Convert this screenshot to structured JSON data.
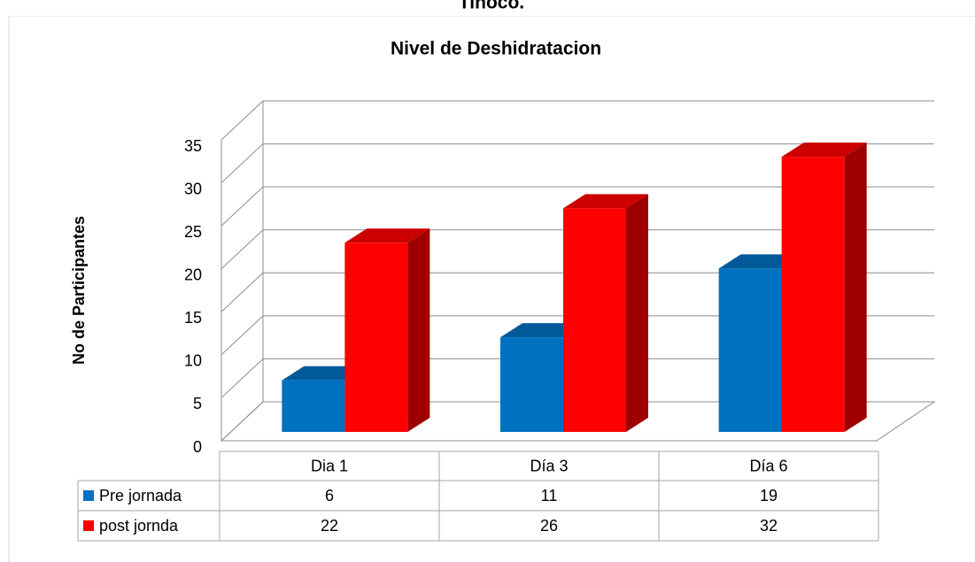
{
  "heading": "Tinoco.",
  "chart_data": {
    "type": "bar3d",
    "title": "Nivel de Deshidratacion",
    "y_label": "No de Participantes",
    "categories": [
      "Dia 1",
      "Día 3",
      "Día 6"
    ],
    "series": [
      {
        "name": "Pre jornada",
        "color": "#0070c0",
        "values": [
          6,
          11,
          19
        ]
      },
      {
        "name": "post jornda",
        "color": "#ff0000",
        "values": [
          22,
          26,
          32
        ]
      }
    ],
    "ylim": [
      0,
      35
    ],
    "yticks": [
      0,
      5,
      10,
      15,
      20,
      25,
      30,
      35
    ],
    "grid": true,
    "data_table": true
  }
}
